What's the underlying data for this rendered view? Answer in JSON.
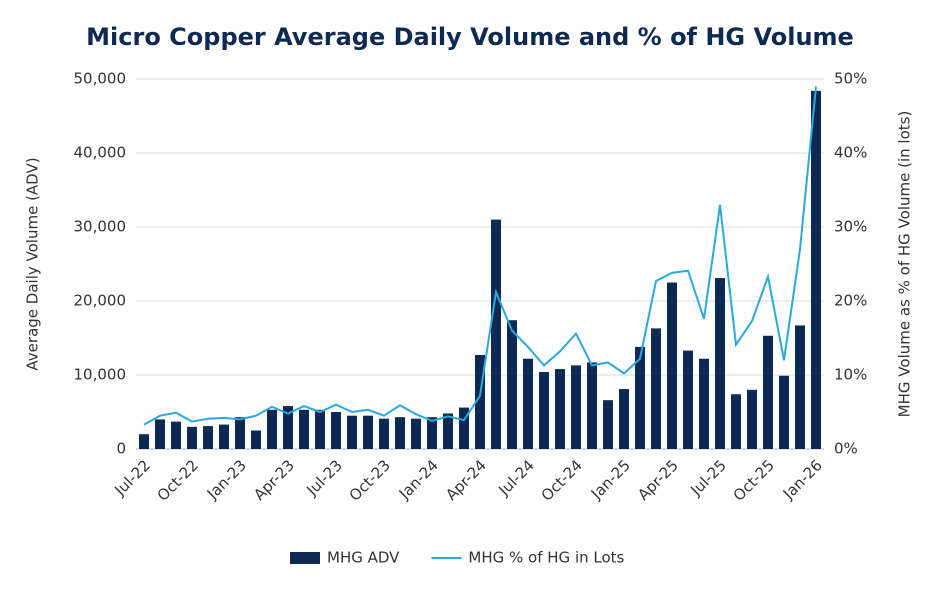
{
  "chart_data": {
    "type": "bar-line",
    "title": "Micro Copper Average Daily Volume and % of HG Volume",
    "y_label": "Average Daily Volume (ADV)",
    "y2_label": "MHG Volume as % of HG Volume (in lots)",
    "categories": [
      "Jul-22",
      null,
      null,
      "Oct-22",
      null,
      null,
      "Jan-23",
      null,
      null,
      "Apr-23",
      null,
      null,
      "Jul-23",
      null,
      null,
      "Oct-23",
      null,
      null,
      "Jan-24",
      null,
      null,
      "Apr-24",
      null,
      null,
      "Jul-24",
      null,
      null,
      "Oct-24",
      null,
      null,
      "Jan-25",
      null,
      null,
      "Apr-25",
      null,
      null,
      "Jul-25",
      null,
      null,
      "Oct-25",
      null,
      null,
      "Jan-26"
    ],
    "series": [
      {
        "name": "MHG ADV",
        "color": "#0e2a52",
        "kind": "bar",
        "values": [
          2000,
          4000,
          3700,
          3000,
          3100,
          3300,
          4300,
          2500,
          5300,
          5800,
          5300,
          5300,
          5000,
          4500,
          4500,
          4100,
          4300,
          4100,
          4300,
          4800,
          5600,
          12700,
          31000,
          17400,
          12200,
          10400,
          10800,
          11300,
          11700,
          6600,
          8100,
          13800,
          16300,
          22500,
          13300,
          12200,
          23100,
          7400,
          8000,
          15300,
          9900,
          16700,
          48400
        ]
      },
      {
        "name": "MHG % of HG in Lots",
        "color": "#2aa8e0",
        "kind": "line",
        "axis": "y2",
        "values": [
          3.3,
          4.5,
          4.9,
          3.7,
          4.1,
          4.2,
          4.0,
          4.5,
          5.7,
          4.8,
          5.8,
          5.0,
          6.0,
          5.0,
          5.3,
          4.5,
          5.9,
          4.7,
          3.8,
          4.4,
          3.9,
          7.2,
          21.2,
          16.0,
          13.8,
          11.3,
          13.2,
          15.6,
          11.3,
          11.7,
          10.2,
          12.2,
          22.7,
          23.8,
          24.1,
          17.6,
          33.0,
          14.1,
          17.3,
          23.3,
          12.0,
          27.0,
          49.0
        ]
      }
    ],
    "ylim": [
      0,
      50000
    ],
    "yticks": [
      0,
      {
        "value": 10000,
        "label": "10,000"
      },
      {
        "value": 20000,
        "label": "20,000"
      },
      {
        "value": 30000,
        "label": "30,000"
      },
      {
        "value": 40000,
        "label": "40,000"
      },
      {
        "value": 50000,
        "label": "50,000"
      }
    ],
    "y2lim": [
      0,
      50
    ],
    "y2ticks": [
      {
        "value": 0,
        "label": "0%"
      },
      {
        "value": 10,
        "label": "10%"
      },
      {
        "value": 20,
        "label": "20%"
      },
      {
        "value": 30,
        "label": "30%"
      },
      {
        "value": 40,
        "label": "40%"
      },
      {
        "value": 50,
        "label": "50%"
      }
    ],
    "grid": true,
    "legend": "bottom"
  }
}
